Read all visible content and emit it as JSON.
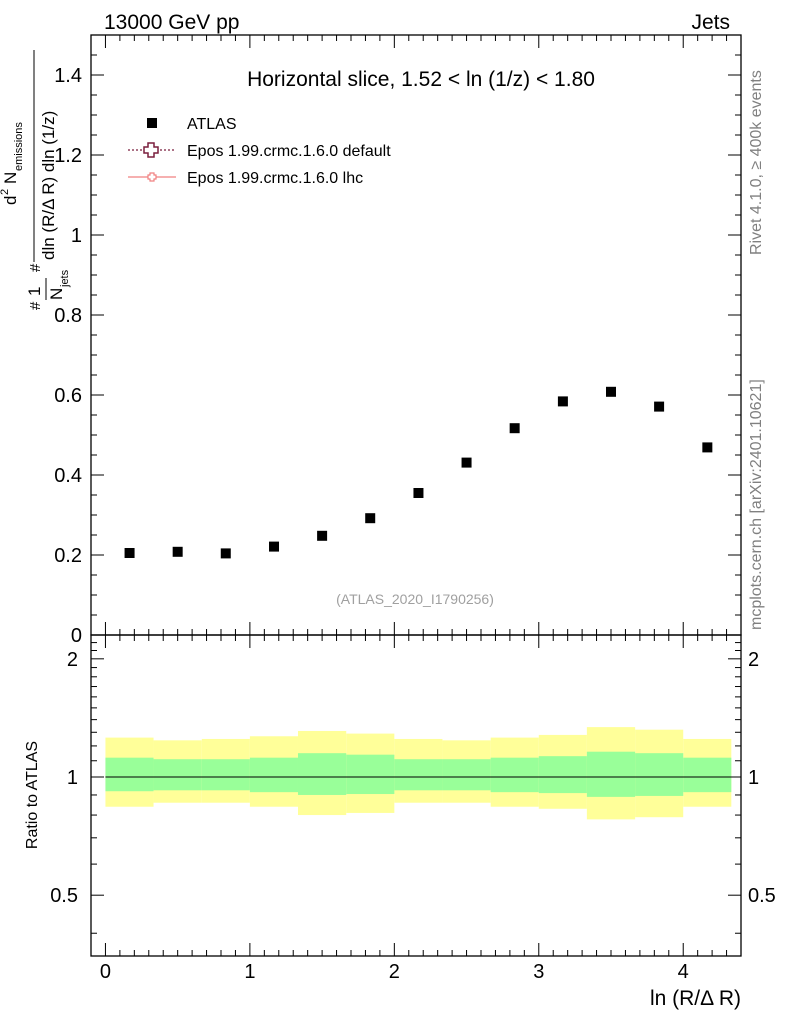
{
  "header": {
    "left": "13000 GeV pp",
    "right": "Jets"
  },
  "side": {
    "rivet": "Rivet 4.1.0, ≥ 400k events",
    "mcplots": "mcplots.cern.ch [arXiv:2401.10621]"
  },
  "chart_data": [
    {
      "type": "scatter",
      "title": "Horizontal slice, 1.52 < ln (1/z) < 1.80",
      "watermark": "(ATLAS_2020_I1790256)",
      "ylabel": {
        "frac_num": "1",
        "frac_den": "N",
        "frac_den_sub": "jets",
        "d2": "d",
        "d2_sup": "2",
        "N": "N",
        "N_sub": "emissions",
        "denominator": "dln (R/Δ R) dln (1/z)",
        "hash": "#"
      },
      "xlabel": "ln (R/Δ R)",
      "xlim": [
        -0.1,
        4.4
      ],
      "ylim": [
        0,
        1.5
      ],
      "x_ticks": [
        "0",
        "1",
        "2",
        "3",
        "4"
      ],
      "y_ticks": [
        "0",
        "0.2",
        "0.4",
        "0.6",
        "0.8",
        "1",
        "1.2",
        "1.4"
      ],
      "legend": [
        {
          "label": "ATLAS",
          "marker": "square",
          "color": "#000000"
        },
        {
          "label": "Epos 1.99.crmc.1.6.0 default",
          "marker": "open-cross",
          "color": "#7a1f3d"
        },
        {
          "label": "Epos 1.99.crmc.1.6.0 lhc",
          "marker": "small-cross",
          "color": "#f08080"
        }
      ],
      "series": [
        {
          "name": "ATLAS",
          "x": [
            0.167,
            0.5,
            0.833,
            1.167,
            1.5,
            1.833,
            2.167,
            2.5,
            2.833,
            3.167,
            3.5,
            3.833,
            4.167
          ],
          "y": [
            0.205,
            0.208,
            0.204,
            0.221,
            0.248,
            0.292,
            0.355,
            0.431,
            0.517,
            0.584,
            0.608,
            0.571,
            0.469
          ]
        }
      ]
    },
    {
      "type": "area",
      "ylabel": "Ratio to ATLAS",
      "xlim": [
        -0.1,
        4.4
      ],
      "ylim": [
        0.35,
        2.3
      ],
      "y_ticks": [
        "0.5",
        "1",
        "2"
      ],
      "y_tick_values": [
        0.5,
        1,
        2
      ],
      "bin_edges": [
        0,
        0.333,
        0.667,
        1.0,
        1.333,
        1.667,
        2.0,
        2.333,
        2.667,
        3.0,
        3.333,
        3.667,
        4.0,
        4.333
      ],
      "total_band_low": [
        0.84,
        0.86,
        0.86,
        0.84,
        0.8,
        0.81,
        0.86,
        0.86,
        0.84,
        0.83,
        0.78,
        0.79,
        0.84
      ],
      "total_band_high": [
        1.26,
        1.24,
        1.25,
        1.27,
        1.31,
        1.29,
        1.25,
        1.24,
        1.26,
        1.28,
        1.34,
        1.32,
        1.25
      ],
      "stat_band_low": [
        0.92,
        0.925,
        0.925,
        0.915,
        0.9,
        0.905,
        0.925,
        0.925,
        0.915,
        0.91,
        0.89,
        0.895,
        0.915
      ],
      "stat_band_high": [
        1.12,
        1.11,
        1.11,
        1.12,
        1.15,
        1.14,
        1.11,
        1.11,
        1.12,
        1.13,
        1.16,
        1.15,
        1.12
      ],
      "reference": 1,
      "colors": {
        "total": "#ffff99",
        "stat": "#99ff99",
        "reference": "#000000"
      }
    }
  ]
}
